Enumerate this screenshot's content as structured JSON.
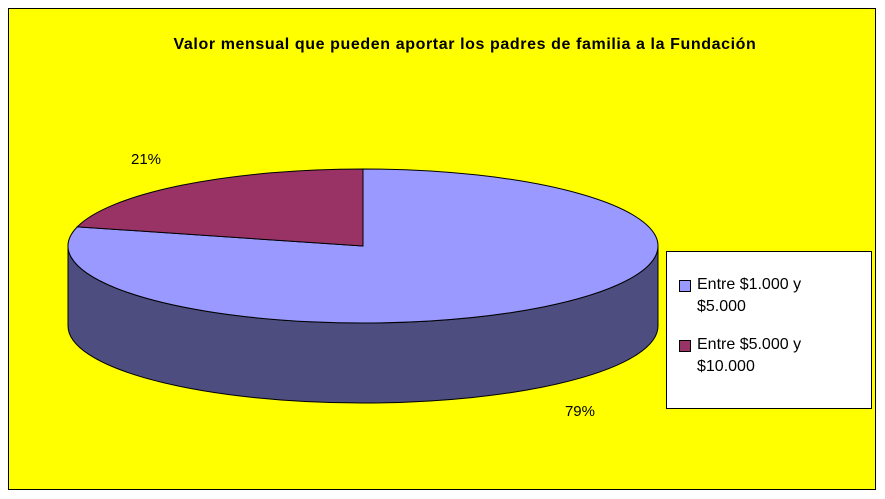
{
  "chart_data": {
    "type": "pie",
    "title": "Valor mensual que pueden aportar los padres de familia a la Fundación",
    "categories": [
      "Entre $1.000 y $5.000",
      "Entre $5.000 y $10.000"
    ],
    "values": [
      79,
      21
    ],
    "value_labels": [
      "79%",
      "21%"
    ],
    "colors": [
      "#9999ff",
      "#993366"
    ],
    "legend": "right"
  }
}
